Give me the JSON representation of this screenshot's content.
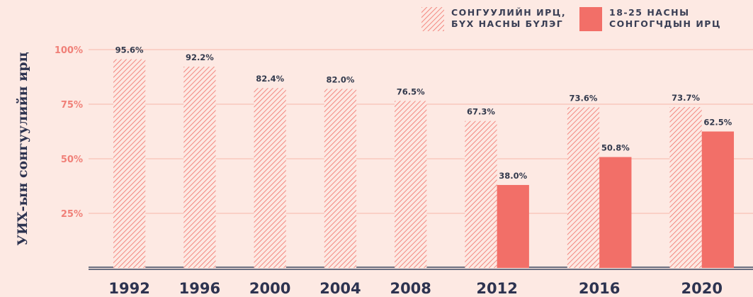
{
  "chart_data": {
    "type": "bar",
    "y_label": "УИХ-ын сонгуулийн ирц",
    "categories": [
      "1992",
      "1996",
      "2000",
      "2004",
      "2008",
      "2012",
      "2016",
      "2020"
    ],
    "series": [
      {
        "name": "СОНГУУЛИЙН ИРЦ,\nБҮХ НАСНЫ БҮЛЭГ",
        "color": "#f07068",
        "pattern": "hatch",
        "values": [
          95.6,
          92.2,
          82.4,
          82.0,
          76.5,
          67.3,
          73.6,
          73.7
        ],
        "value_labels": [
          "95.6%",
          "92.2%",
          "82.4%",
          "82.0%",
          "76.5%",
          "67.3%",
          "73.6%",
          "73.7%"
        ]
      },
      {
        "name": "18-25 НАСНЫ\nСОНГОГЧДЫН ИРЦ",
        "color": "#f26f68",
        "pattern": "solid",
        "values": [
          null,
          null,
          null,
          null,
          null,
          38.0,
          50.8,
          62.5
        ],
        "value_labels": [
          null,
          null,
          null,
          null,
          null,
          "38.0%",
          "50.8%",
          "62.5%"
        ]
      }
    ],
    "ylim": [
      0,
      100
    ],
    "yticks": [
      {
        "value": 25,
        "label": "25%"
      },
      {
        "value": 50,
        "label": "50%"
      },
      {
        "value": 75,
        "label": "75%"
      },
      {
        "value": 100,
        "label": "100%"
      }
    ],
    "grid": true
  }
}
